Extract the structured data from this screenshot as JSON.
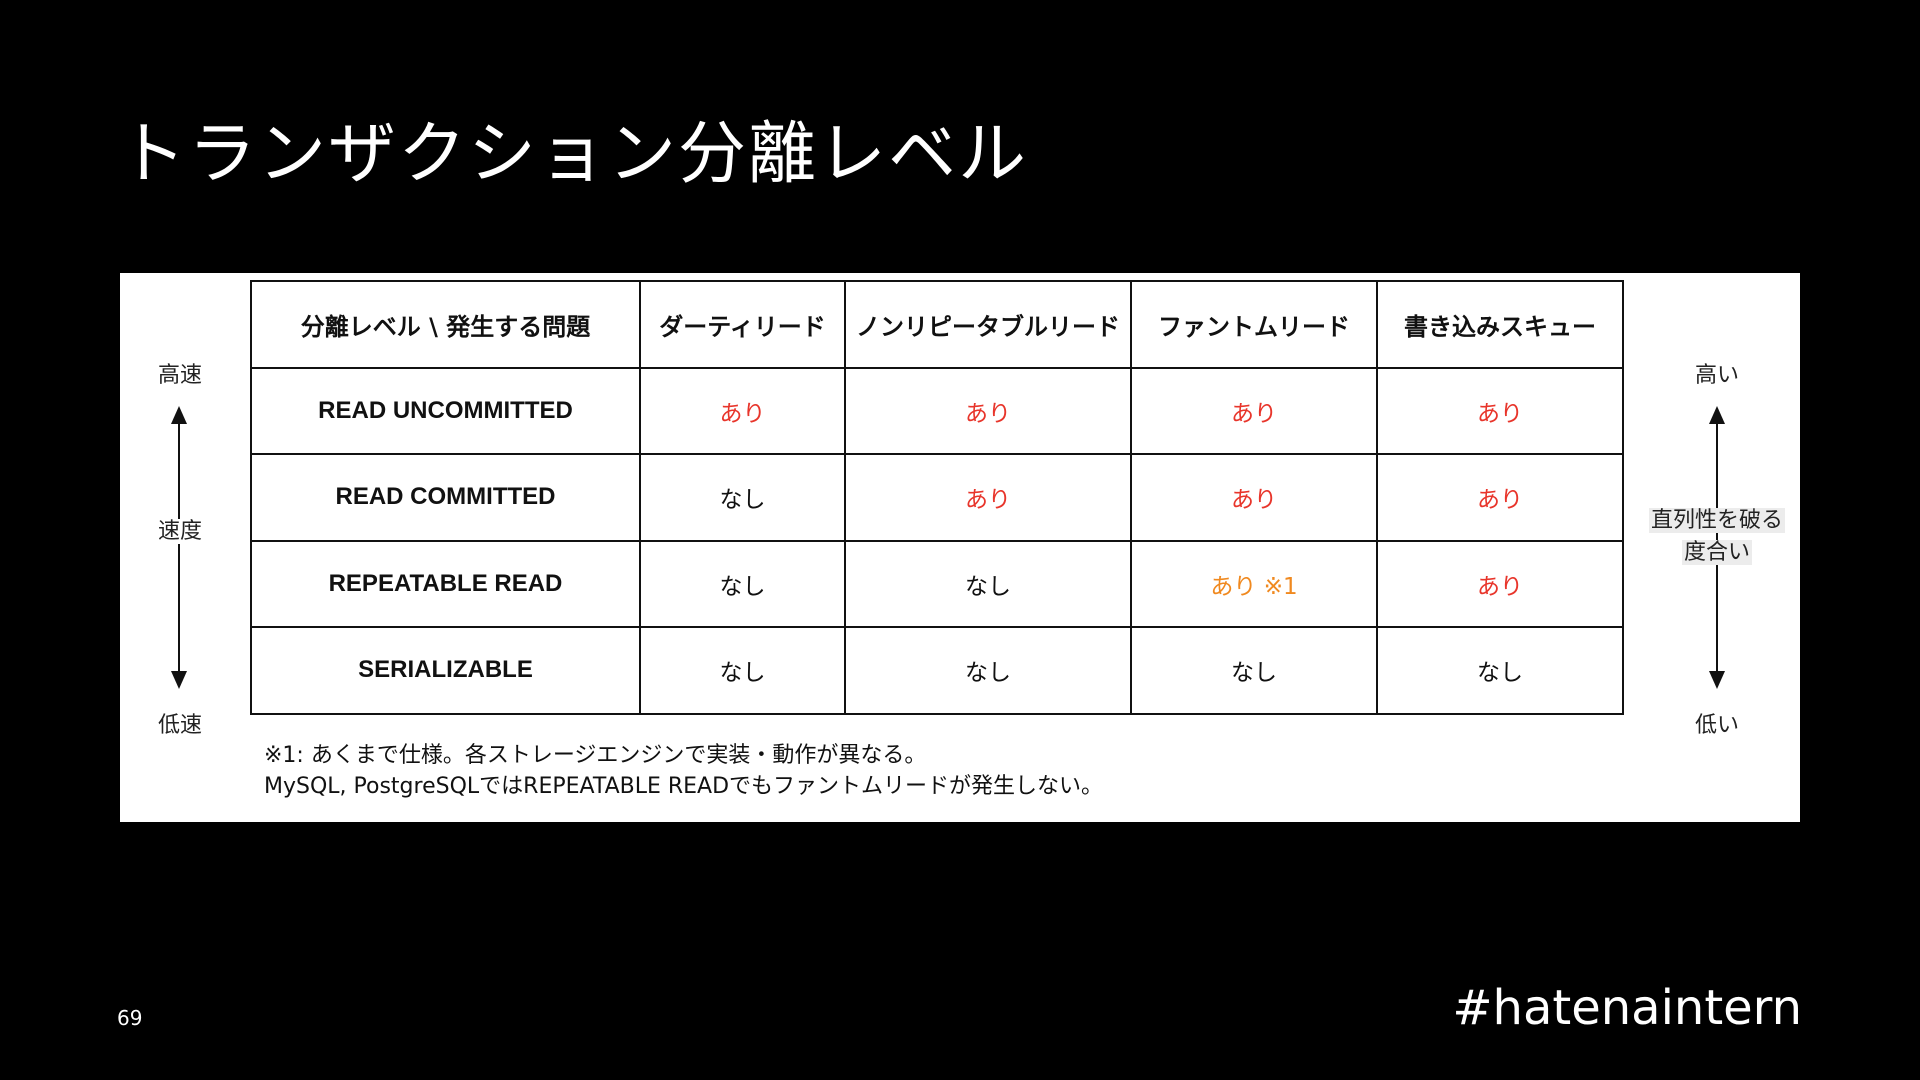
{
  "title": "トランザクション分離レベル",
  "table": {
    "headers": [
      "分離レベル \\ 発生する問題",
      "ダーティリード",
      "ノンリピータブルリード",
      "ファントムリード",
      "書き込みスキュー"
    ],
    "rows": [
      {
        "level": "READ UNCOMMITTED",
        "cells": [
          "あり",
          "あり",
          "あり",
          "あり"
        ]
      },
      {
        "level": "READ COMMITTED",
        "cells": [
          "なし",
          "あり",
          "あり",
          "あり"
        ]
      },
      {
        "level": "REPEATABLE READ",
        "cells": [
          "なし",
          "なし",
          "あり ※1",
          "あり"
        ]
      },
      {
        "level": "SERIALIZABLE",
        "cells": [
          "なし",
          "なし",
          "なし",
          "なし"
        ]
      }
    ]
  },
  "left_axis": {
    "top": "高速",
    "middle": "速度",
    "bottom": "低速"
  },
  "right_axis": {
    "top": "高い",
    "middle_1": "直列性を破る",
    "middle_2": "度合い",
    "bottom": "低い"
  },
  "footnote": [
    "※1: あくまで仕様。各ストレージエンジンで実装・動作が異なる。",
    "MySQL, PostgreSQLではREPEATABLE READでもファントムリードが発生しない。"
  ],
  "page_number": "69",
  "hashtag": "#hatenaintern",
  "colors": {
    "yes": "#e8352b",
    "yes_note": "#f0891f",
    "no": "#222222"
  }
}
